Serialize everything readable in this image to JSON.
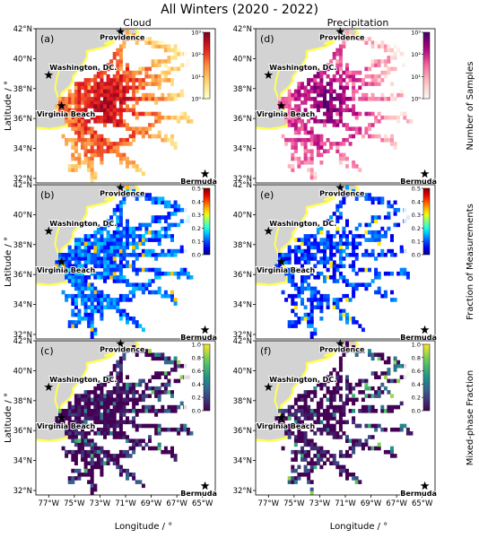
{
  "figure": {
    "title": "All Winters (2020 - 2022)",
    "col_titles": [
      "Cloud",
      "Precipitation"
    ],
    "xlabel": "Longitude / °",
    "ylabel": "Latitude / °",
    "row_cbar_labels": [
      "Number of Samples",
      "Fraction of Measurements",
      "Mixed-phase Fraction"
    ]
  },
  "chart_data": {
    "type": "heatmap",
    "title": "All Winters (2020 - 2022)",
    "xlabel": "Longitude / °",
    "ylabel": "Latitude / °",
    "xlim": [
      -78,
      -64
    ],
    "ylim": [
      31.7,
      42
    ],
    "xticks": [
      -77,
      -75,
      -73,
      -71,
      -69,
      -67,
      -65
    ],
    "xtick_labels": [
      "77°W",
      "75°W",
      "73°W",
      "71°W",
      "69°W",
      "67°W",
      "65°W"
    ],
    "yticks": [
      32,
      34,
      36,
      38,
      40,
      42
    ],
    "ytick_labels": [
      "32°N",
      "34°N",
      "36°N",
      "38°N",
      "40°N",
      "42°N"
    ],
    "locations": [
      {
        "name": "Providence",
        "lon": -71.4,
        "lat": 41.8
      },
      {
        "name": "Washington, DC.",
        "lon": -77.0,
        "lat": 38.9
      },
      {
        "name": "Virginia Beach",
        "lon": -76.0,
        "lat": 36.85
      },
      {
        "name": "Bermuda",
        "lon": -64.8,
        "lat": 32.3
      }
    ],
    "panels": [
      {
        "label": "(a)",
        "column": "Cloud",
        "row": 0,
        "colorbar": "Number of Samples",
        "cmap": "YlOrRd",
        "scale": "log",
        "range": [
          1,
          1000
        ],
        "cbar_ticks": [
          "10⁰",
          "10¹",
          "10²",
          "10³"
        ],
        "track_density": 1.0
      },
      {
        "label": "(b)",
        "column": "Cloud",
        "row": 1,
        "colorbar": "Fraction of Measurements",
        "cmap": "jet",
        "scale": "linear",
        "range": [
          0,
          0.5
        ],
        "cbar_ticks": [
          "0.0",
          "0.1",
          "0.2",
          "0.3",
          "0.4",
          "0.5"
        ],
        "track_density": 1.0
      },
      {
        "label": "(c)",
        "column": "Cloud",
        "row": 2,
        "colorbar": "Mixed-phase Fraction",
        "cmap": "viridis",
        "scale": "linear",
        "range": [
          0,
          1
        ],
        "cbar_ticks": [
          "0.0",
          "0.2",
          "0.4",
          "0.6",
          "0.8",
          "1.0"
        ],
        "track_density": 0.95
      },
      {
        "label": "(d)",
        "column": "Precipitation",
        "row": 0,
        "colorbar": "Number of Samples",
        "cmap": "RdPu",
        "scale": "log",
        "range": [
          1,
          1000
        ],
        "cbar_ticks": [
          "10⁰",
          "10¹",
          "10²",
          "10³"
        ],
        "track_density": 0.8
      },
      {
        "label": "(e)",
        "column": "Precipitation",
        "row": 1,
        "colorbar": "Fraction of Measurements",
        "cmap": "jet",
        "scale": "linear",
        "range": [
          0,
          0.5
        ],
        "cbar_ticks": [
          "0.0",
          "0.1",
          "0.2",
          "0.3",
          "0.4",
          "0.5"
        ],
        "track_density": 0.75
      },
      {
        "label": "(f)",
        "column": "Precipitation",
        "row": 2,
        "colorbar": "Mixed-phase Fraction",
        "cmap": "viridis",
        "scale": "linear",
        "range": [
          0,
          1
        ],
        "cbar_ticks": [
          "0.0",
          "0.2",
          "0.4",
          "0.6",
          "0.8",
          "1.0"
        ],
        "track_density": 0.75
      }
    ]
  },
  "colors": {
    "land": "#d3d3d3",
    "coast": "#ffff55",
    "ocean": "#ffffff"
  }
}
